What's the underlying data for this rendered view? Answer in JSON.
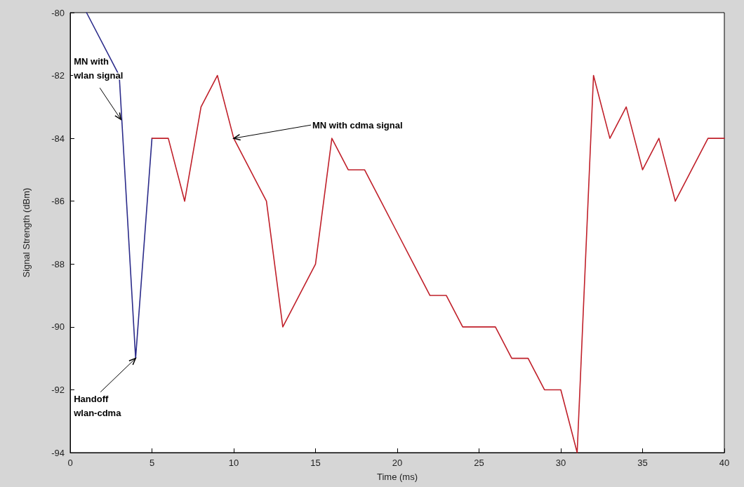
{
  "chart_data": {
    "type": "line",
    "xlabel": "Time (ms)",
    "ylabel": "Signal Strength (dBm)",
    "xlim": [
      0,
      40
    ],
    "xticks": [
      0,
      5,
      10,
      15,
      20,
      25,
      30,
      35,
      40
    ],
    "ylim": [
      -94,
      -80
    ],
    "yticks": [
      -94,
      -92,
      -90,
      -88,
      -86,
      -84,
      -82,
      -80
    ],
    "grid": false,
    "marker": "none",
    "line_style": "solid",
    "series": [
      {
        "color": "#2b2b8a",
        "x": [
          1,
          3,
          4,
          5
        ],
        "values": [
          -80,
          -82,
          -91,
          -84
        ]
      },
      {
        "color": "#c0202a",
        "x": [
          5,
          6,
          7,
          8,
          9,
          10,
          11,
          12,
          13,
          14,
          15,
          16,
          17,
          18,
          19,
          20,
          21,
          22,
          23,
          24,
          25,
          26,
          27,
          28,
          29,
          30,
          31,
          32,
          33,
          34,
          35,
          36,
          37,
          38,
          39,
          40
        ],
        "values": [
          -84,
          -84,
          -86,
          -83,
          -82,
          -84,
          -85,
          -86,
          -90,
          -89,
          -88,
          -84,
          -85,
          -85,
          -86,
          -87,
          -88,
          -89,
          -89,
          -90,
          -90,
          -90,
          -91,
          -91,
          -92,
          -92,
          -94,
          -82,
          -84,
          -83,
          -85,
          -84,
          -86,
          -85,
          -84,
          -84
        ]
      }
    ],
    "annotations": [
      {
        "text": "MN with\nwlan signal",
        "x": 3.1,
        "y": -83.4
      },
      {
        "text": "MN with cdma signal",
        "x": 10,
        "y": -84
      },
      {
        "text": "Handoff\nwlan-cdma",
        "x": 4,
        "y": -91
      }
    ]
  }
}
